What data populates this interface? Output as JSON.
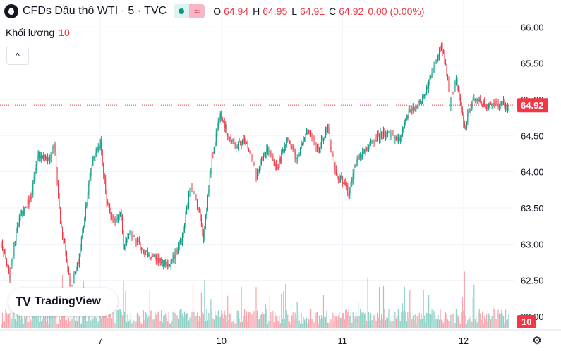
{
  "header": {
    "symbol_title": "CFDs Dầu thô WTI · 5 · TVC",
    "ohlc": [
      {
        "k": "O",
        "v": "64.94"
      },
      {
        "k": "H",
        "v": "64.95"
      },
      {
        "k": "L",
        "v": "64.91"
      },
      {
        "k": "C",
        "v": "64.92"
      }
    ],
    "change": "0.00 (0.00%)",
    "wave_glyph": "≈"
  },
  "volume_legend": {
    "label": "Khối lượng",
    "value": "10"
  },
  "collapse_glyph": "^",
  "logo": {
    "mark": "TV",
    "text": "TradingView"
  },
  "colors": {
    "up": "#089981",
    "down": "#f23645",
    "grid": "#f0f3fa",
    "text": "#131722"
  },
  "chart_data": {
    "type": "candlestick",
    "price_axis": {
      "ticks": [
        "66.00",
        "65.50",
        "65.00",
        "64.50",
        "64.00",
        "63.50",
        "63.00",
        "62.50",
        "62.00"
      ],
      "range": [
        62.0,
        66.1
      ]
    },
    "time_axis": {
      "labels": [
        {
          "label": "7",
          "index": 94
        },
        {
          "label": "10",
          "index": 209
        },
        {
          "label": "11",
          "index": 324
        },
        {
          "label": "12",
          "index": 439
        }
      ]
    },
    "last_price_label": "64.92",
    "last_volume_label": "10",
    "anchors": [
      [
        0,
        63.0
      ],
      [
        8,
        62.55
      ],
      [
        15,
        63.3
      ],
      [
        28,
        63.65
      ],
      [
        35,
        64.25
      ],
      [
        45,
        64.15
      ],
      [
        50,
        64.4
      ],
      [
        56,
        63.3
      ],
      [
        60,
        63.0
      ],
      [
        66,
        62.4
      ],
      [
        73,
        62.75
      ],
      [
        80,
        63.5
      ],
      [
        87,
        64.2
      ],
      [
        94,
        64.4
      ],
      [
        100,
        63.6
      ],
      [
        107,
        63.3
      ],
      [
        114,
        63.4
      ],
      [
        116,
        62.95
      ],
      [
        122,
        63.15
      ],
      [
        130,
        63.0
      ],
      [
        140,
        62.85
      ],
      [
        160,
        62.7
      ],
      [
        172,
        63.1
      ],
      [
        180,
        63.85
      ],
      [
        188,
        63.45
      ],
      [
        192,
        63.1
      ],
      [
        200,
        64.2
      ],
      [
        208,
        64.85
      ],
      [
        214,
        64.55
      ],
      [
        222,
        64.35
      ],
      [
        232,
        64.45
      ],
      [
        242,
        63.95
      ],
      [
        252,
        64.3
      ],
      [
        262,
        64.05
      ],
      [
        272,
        64.5
      ],
      [
        280,
        64.15
      ],
      [
        290,
        64.6
      ],
      [
        300,
        64.3
      ],
      [
        310,
        64.6
      ],
      [
        318,
        63.95
      ],
      [
        326,
        63.85
      ],
      [
        330,
        63.7
      ],
      [
        336,
        64.1
      ],
      [
        346,
        64.3
      ],
      [
        356,
        64.45
      ],
      [
        364,
        64.55
      ],
      [
        378,
        64.45
      ],
      [
        388,
        64.85
      ],
      [
        398,
        64.95
      ],
      [
        408,
        65.3
      ],
      [
        412,
        65.55
      ],
      [
        418,
        65.75
      ],
      [
        422,
        65.5
      ],
      [
        426,
        64.95
      ],
      [
        432,
        65.25
      ],
      [
        440,
        64.6
      ],
      [
        448,
        65.0
      ],
      [
        462,
        64.9
      ],
      [
        472,
        64.95
      ],
      [
        482,
        64.92
      ]
    ]
  }
}
